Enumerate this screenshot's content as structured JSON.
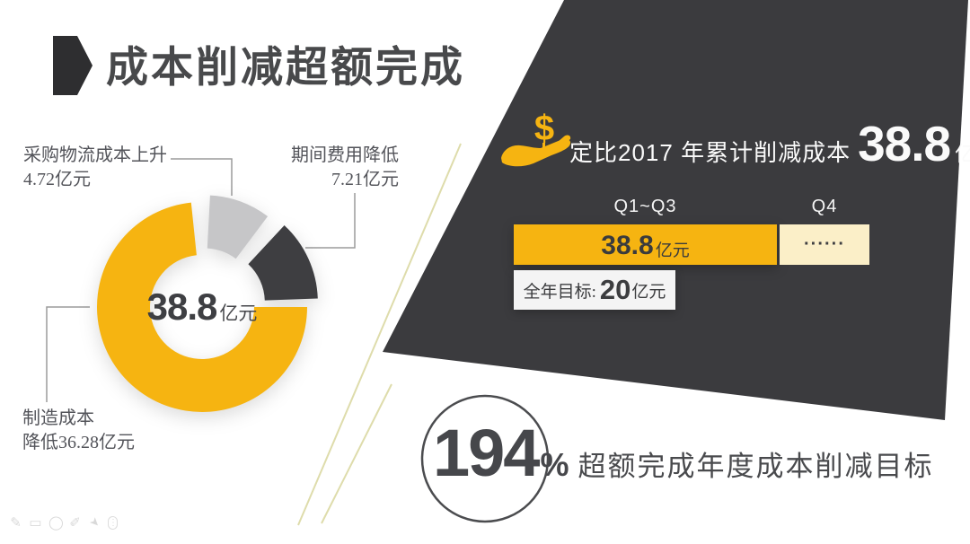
{
  "title": "成本削减超额完成",
  "colors": {
    "accent_yellow": "#F6B411",
    "cream": "#FBEFC8",
    "dark_panel": "#3B3B3E",
    "dark_segment": "#3E3E41",
    "gray_segment": "#C6C6C8",
    "text_dark": "#48494C",
    "decor_line": "#DEDCAB"
  },
  "chart_data": [
    {
      "type": "pie",
      "style": "donut-exploded",
      "center_label": {
        "value": "38.8",
        "unit": "亿元"
      },
      "legend_position": "callout-labels",
      "segments": [
        {
          "key": "manufacturing",
          "label": "制造成本降低",
          "value": 36.28,
          "unit": "亿元",
          "color": "#F6B411",
          "start_angle": 90,
          "end_angle": 354,
          "explode": 0
        },
        {
          "key": "purchase-logistics",
          "label": "采购物流成本上升",
          "value": 4.72,
          "unit": "亿元",
          "color": "#C6C6C8",
          "start_angle": 3,
          "end_angle": 37,
          "explode": 8
        },
        {
          "key": "period-expense",
          "label": "期间费用降低",
          "value": 7.21,
          "unit": "亿元",
          "color": "#3E3E41",
          "start_angle": 43,
          "end_angle": 88,
          "explode": 13
        }
      ]
    },
    {
      "type": "bar",
      "orientation": "horizontal",
      "categories": [
        "Q1~Q3",
        "Q4"
      ],
      "values": [
        38.8,
        null
      ],
      "value_labels": [
        "38.8亿元",
        "······"
      ],
      "bar1_display": {
        "value": "38.8",
        "unit": "亿元"
      },
      "bar2_display": "······",
      "annual_target": {
        "prefix": "全年目标:",
        "value": "20",
        "unit": "亿元"
      }
    }
  ],
  "donut_callouts": {
    "purchase": {
      "line1": "采购物流成本上升",
      "line2": "4.72亿元"
    },
    "period": {
      "line1": "期间费用降低",
      "line2": "7.21亿元"
    },
    "manufacturing": {
      "line1": "制造成本",
      "line2": "降低36.28亿元"
    }
  },
  "headline": {
    "icon": "hand-receiving-dollar-icon",
    "prefix": "定比2017 年累计削减成本",
    "value": "38.8",
    "unit": "亿元"
  },
  "conclusion": {
    "value": "194",
    "sign": "%",
    "text": "超额完成年度成本削减目标"
  },
  "footer": {
    "icons": [
      {
        "name": "pencil-icon",
        "glyph": "✎"
      },
      {
        "name": "image-icon",
        "glyph": "▭"
      },
      {
        "name": "ellipse-icon",
        "glyph": "◯"
      },
      {
        "name": "pen-icon",
        "glyph": "✐"
      },
      {
        "name": "cursor-icon",
        "glyph": "➤"
      },
      {
        "name": "grip-icon",
        "glyph": "⋮"
      }
    ]
  }
}
